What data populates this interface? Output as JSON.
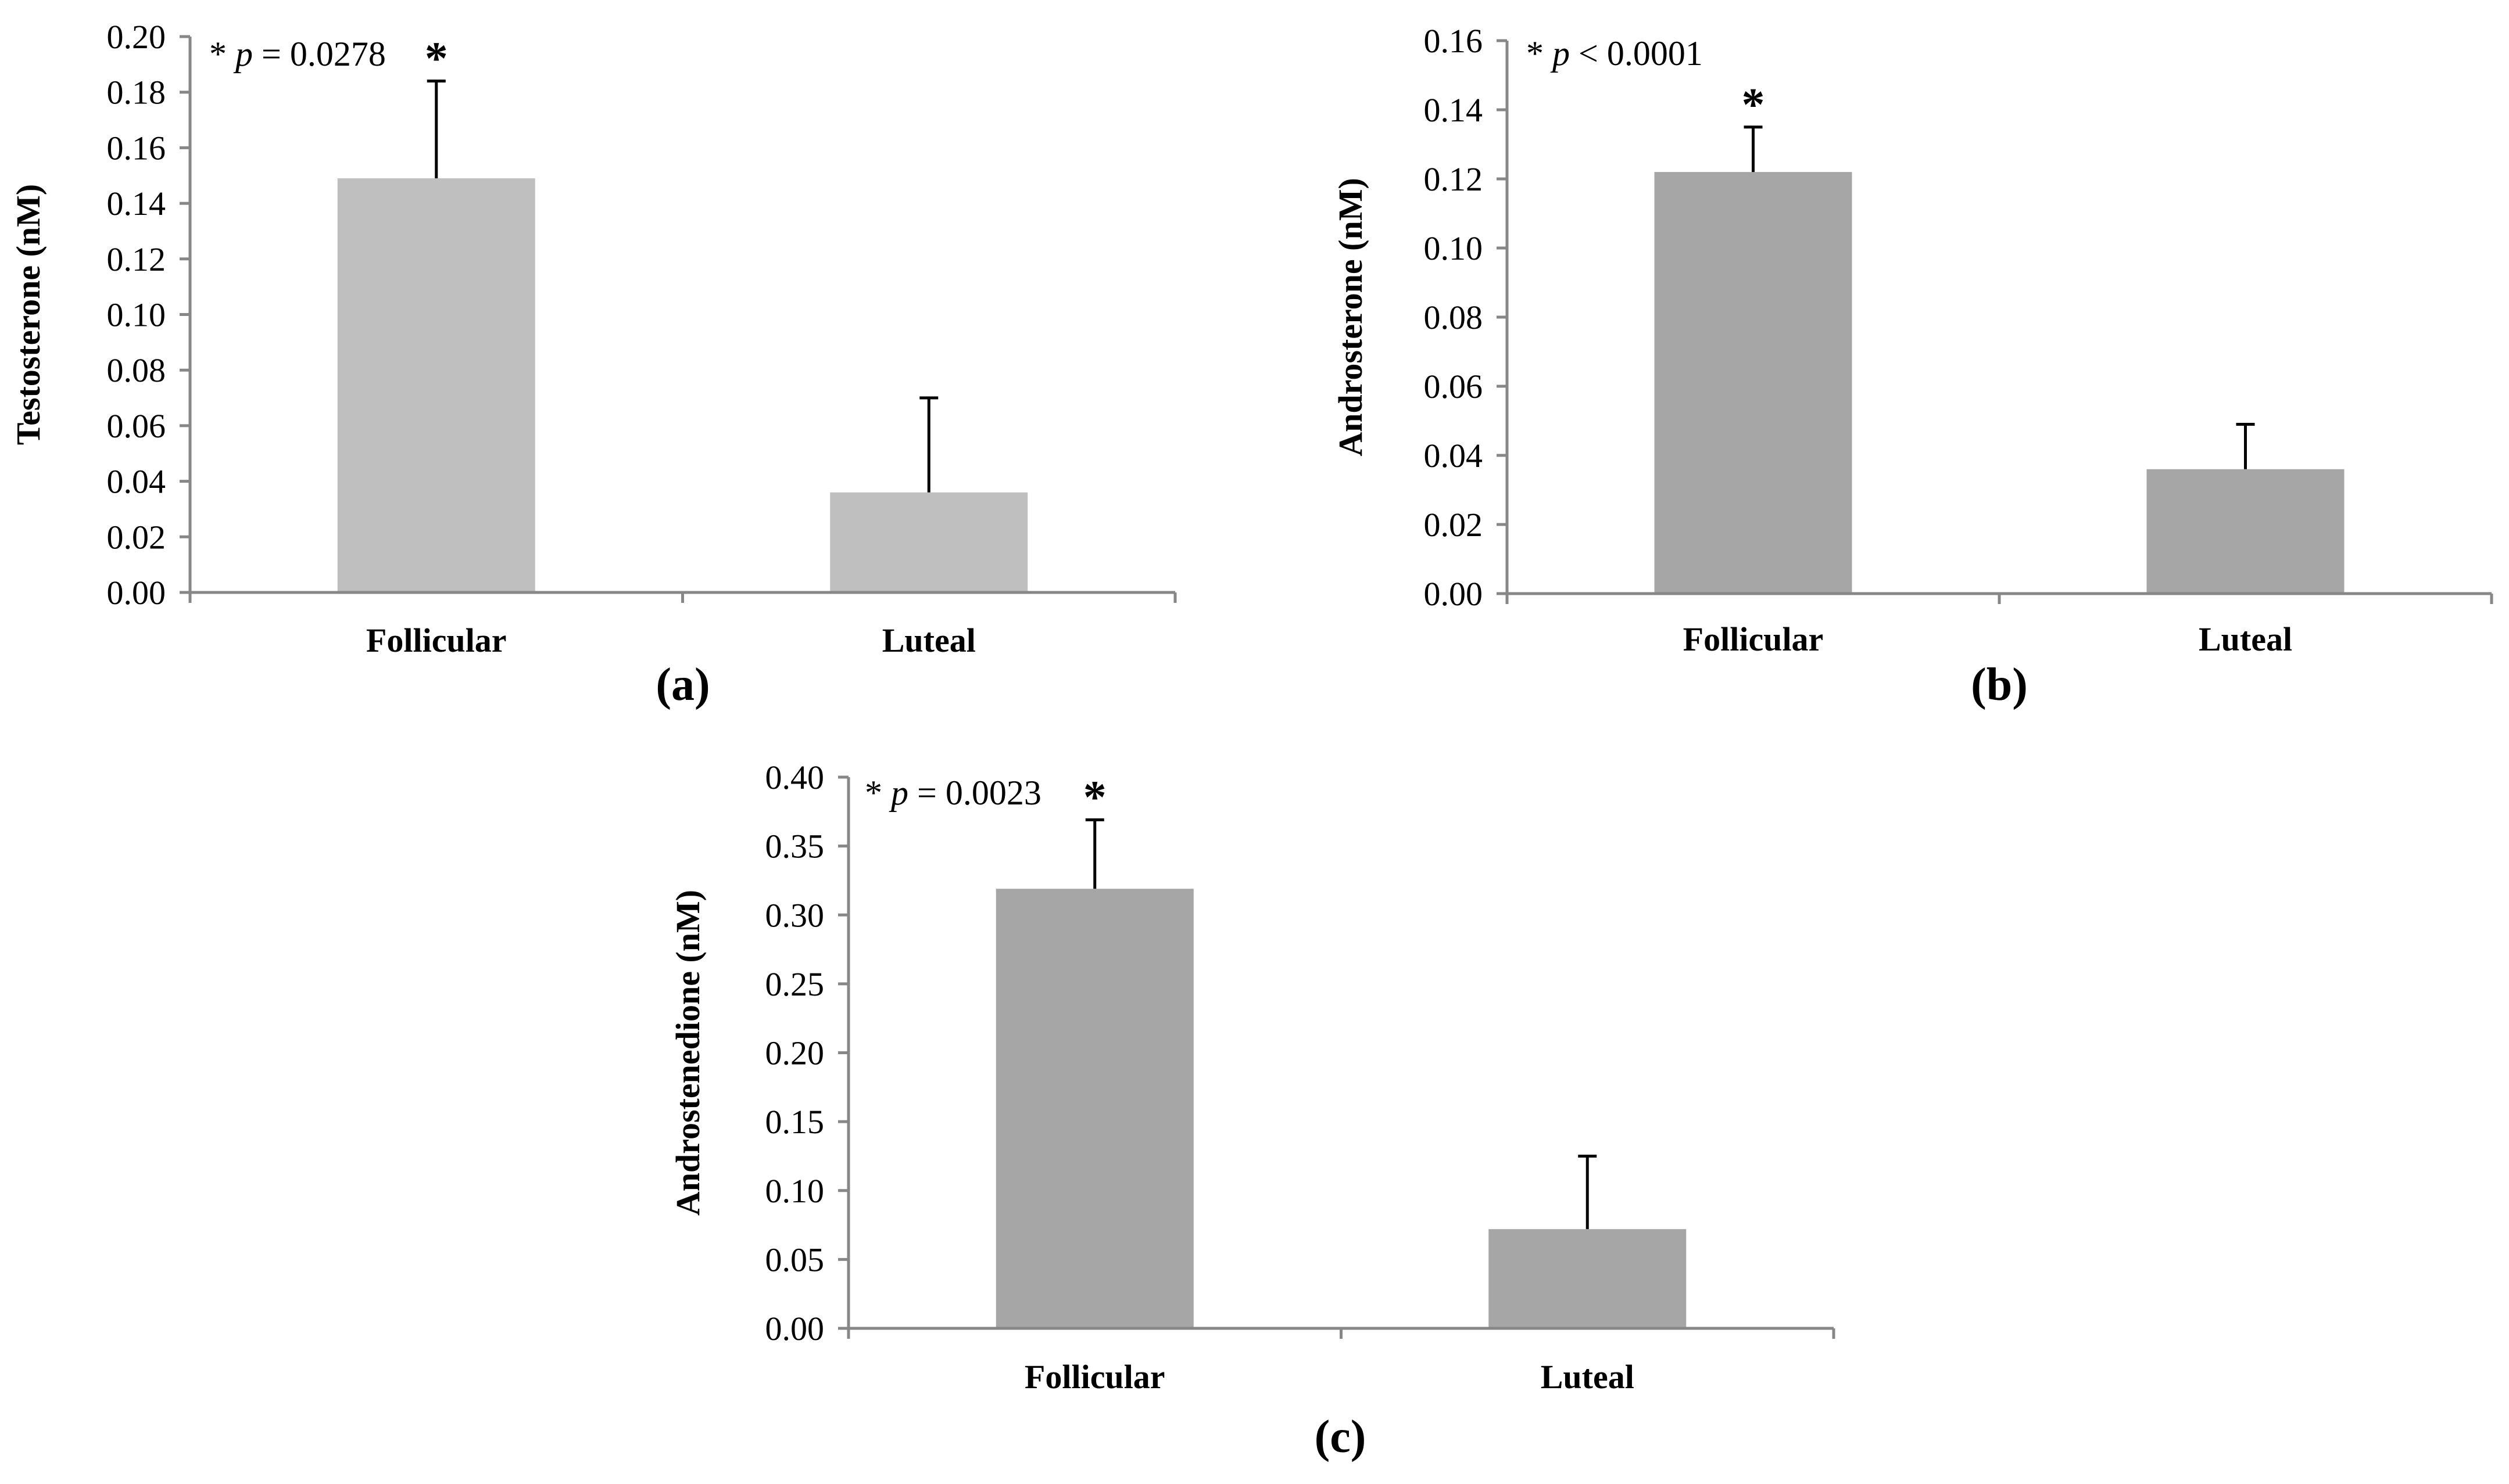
{
  "chart_data": [
    {
      "type": "bar",
      "panel_label": "(a)",
      "categories": [
        "Follicular",
        "Luteal"
      ],
      "values": [
        0.149,
        0.036
      ],
      "error": [
        0.035,
        0.034
      ],
      "ylabel": "Testosterone (nM)",
      "xlabel": "",
      "ylim": [
        0,
        0.2
      ],
      "yticks": [
        "0.00",
        "0.02",
        "0.04",
        "0.06",
        "0.08",
        "0.10",
        "0.12",
        "0.14",
        "0.16",
        "0.18",
        "0.20"
      ],
      "annotation": {
        "star": "*",
        "p_symbol": "p",
        "p_text": "= 0.0278"
      },
      "significance_marker": "*",
      "bar_color": "#bfbfbf",
      "grid": false
    },
    {
      "type": "bar",
      "panel_label": "(b)",
      "categories": [
        "Follicular",
        "Luteal"
      ],
      "values": [
        0.122,
        0.036
      ],
      "error": [
        0.013,
        0.013
      ],
      "ylabel": "Androsterone (nM)",
      "xlabel": "",
      "ylim": [
        0,
        0.16
      ],
      "yticks": [
        "0.00",
        "0.02",
        "0.04",
        "0.06",
        "0.08",
        "0.10",
        "0.12",
        "0.14",
        "0.16"
      ],
      "annotation": {
        "star": "*",
        "p_symbol": "p",
        "p_text": "< 0.0001"
      },
      "significance_marker": "*",
      "bar_color": "#a6a6a6",
      "grid": false
    },
    {
      "type": "bar",
      "panel_label": "(c)",
      "categories": [
        "Follicular",
        "Luteal"
      ],
      "values": [
        0.319,
        0.072
      ],
      "error": [
        0.05,
        0.053
      ],
      "ylabel": "Androstenedione (nM)",
      "xlabel": "",
      "ylim": [
        0,
        0.4
      ],
      "yticks": [
        "0.00",
        "0.05",
        "0.10",
        "0.15",
        "0.20",
        "0.25",
        "0.30",
        "0.35",
        "0.40"
      ],
      "annotation": {
        "star": "*",
        "p_symbol": "p",
        "p_text": "= 0.0023"
      },
      "significance_marker": "*",
      "bar_color": "#a6a6a6",
      "grid": false
    }
  ]
}
